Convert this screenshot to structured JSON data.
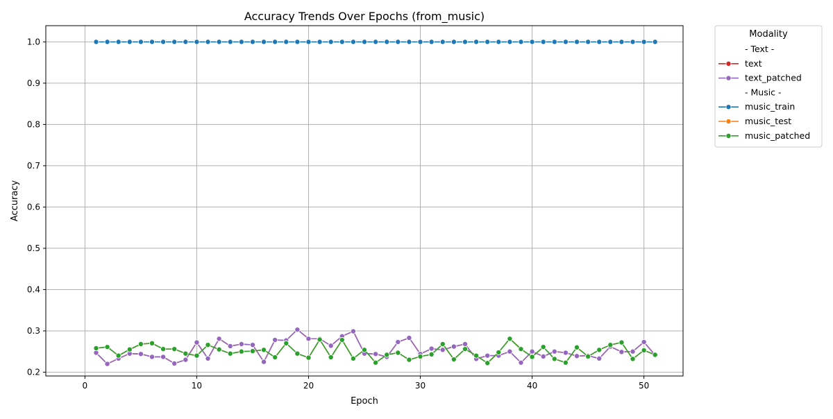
{
  "chart_data": {
    "type": "line",
    "title": "Accuracy Trends Over Epochs (from_music)",
    "xlabel": "Epoch",
    "ylabel": "Accuracy",
    "xlim": [
      -3.5,
      53.5
    ],
    "ylim": [
      0.1907,
      1.0393
    ],
    "xticks": [
      0,
      10,
      20,
      30,
      40,
      50
    ],
    "yticks": [
      0.2,
      0.3,
      0.4,
      0.5,
      0.6,
      0.7,
      0.8,
      0.9,
      1.0
    ],
    "xtick_labels": [
      "0",
      "10",
      "20",
      "30",
      "40",
      "50"
    ],
    "ytick_labels": [
      "0.2",
      "0.3",
      "0.4",
      "0.5",
      "0.6",
      "0.7",
      "0.8",
      "0.9",
      "1.0"
    ],
    "grid": true,
    "legend_title": "Modality",
    "legend_placement": "outside right, top",
    "legend_entries": [
      {
        "label": "- Text -",
        "header": true
      },
      {
        "label": "text",
        "series": 0
      },
      {
        "label": "text_patched",
        "series": 1
      },
      {
        "label": "- Music -",
        "header": true
      },
      {
        "label": "music_train",
        "series": 2
      },
      {
        "label": "music_test",
        "series": 3
      },
      {
        "label": "music_patched",
        "series": 4
      }
    ],
    "x": [
      1,
      2,
      3,
      4,
      5,
      6,
      7,
      8,
      9,
      10,
      11,
      12,
      13,
      14,
      15,
      16,
      17,
      18,
      19,
      20,
      21,
      22,
      23,
      24,
      25,
      26,
      27,
      28,
      29,
      30,
      31,
      32,
      33,
      34,
      35,
      36,
      37,
      38,
      39,
      40,
      41,
      42,
      43,
      44,
      45,
      46,
      47,
      48,
      49,
      50,
      51
    ],
    "series": [
      {
        "name": "text",
        "color": "#d62728",
        "values": [
          0.247,
          0.22,
          0.233,
          0.245,
          0.244,
          0.237,
          0.237,
          0.221,
          0.23,
          0.272,
          0.233,
          0.281,
          0.263,
          0.268,
          0.266,
          0.225,
          0.278,
          0.277,
          0.303,
          0.281,
          0.281,
          0.264,
          0.287,
          0.299,
          0.245,
          0.244,
          0.237,
          0.273,
          0.283,
          0.244,
          0.257,
          0.254,
          0.262,
          0.268,
          0.232,
          0.24,
          0.24,
          0.25,
          0.223,
          0.25,
          0.238,
          0.25,
          0.247,
          0.239,
          0.24,
          0.233,
          0.262,
          0.249,
          0.25,
          0.273,
          0.241
        ]
      },
      {
        "name": "text_patched",
        "color": "#9467bd",
        "values": [
          0.247,
          0.22,
          0.233,
          0.245,
          0.244,
          0.237,
          0.237,
          0.221,
          0.23,
          0.272,
          0.233,
          0.281,
          0.263,
          0.268,
          0.266,
          0.225,
          0.278,
          0.277,
          0.303,
          0.281,
          0.281,
          0.264,
          0.287,
          0.299,
          0.245,
          0.244,
          0.237,
          0.273,
          0.283,
          0.244,
          0.257,
          0.254,
          0.262,
          0.268,
          0.232,
          0.24,
          0.24,
          0.25,
          0.223,
          0.25,
          0.238,
          0.25,
          0.247,
          0.239,
          0.24,
          0.233,
          0.262,
          0.249,
          0.25,
          0.273,
          0.241
        ]
      },
      {
        "name": "music_train",
        "color": "#1f77b4",
        "values": [
          1.0,
          1.0,
          1.0,
          1.0,
          1.0,
          1.0,
          1.0,
          1.0,
          1.0,
          1.0,
          1.0,
          1.0,
          1.0,
          1.0,
          1.0,
          1.0,
          1.0,
          1.0,
          1.0,
          1.0,
          1.0,
          1.0,
          1.0,
          1.0,
          1.0,
          1.0,
          1.0,
          1.0,
          1.0,
          1.0,
          1.0,
          1.0,
          1.0,
          1.0,
          1.0,
          1.0,
          1.0,
          1.0,
          1.0,
          1.0,
          1.0,
          1.0,
          1.0,
          1.0,
          1.0,
          1.0,
          1.0,
          1.0,
          1.0,
          1.0,
          1.0
        ]
      },
      {
        "name": "music_test",
        "color": "#ff7f0e",
        "values": [
          0.258,
          0.261,
          0.24,
          0.255,
          0.268,
          0.27,
          0.256,
          0.256,
          0.245,
          0.24,
          0.266,
          0.255,
          0.245,
          0.25,
          0.251,
          0.254,
          0.236,
          0.27,
          0.245,
          0.235,
          0.279,
          0.236,
          0.278,
          0.233,
          0.254,
          0.223,
          0.242,
          0.247,
          0.23,
          0.238,
          0.243,
          0.268,
          0.231,
          0.256,
          0.24,
          0.222,
          0.248,
          0.281,
          0.256,
          0.237,
          0.261,
          0.232,
          0.223,
          0.26,
          0.238,
          0.254,
          0.266,
          0.272,
          0.232,
          0.253,
          0.242
        ]
      },
      {
        "name": "music_patched",
        "color": "#2ca02c",
        "values": [
          0.258,
          0.261,
          0.24,
          0.255,
          0.268,
          0.27,
          0.256,
          0.256,
          0.245,
          0.24,
          0.266,
          0.255,
          0.245,
          0.25,
          0.251,
          0.254,
          0.236,
          0.27,
          0.245,
          0.235,
          0.279,
          0.236,
          0.278,
          0.233,
          0.254,
          0.223,
          0.242,
          0.247,
          0.23,
          0.238,
          0.243,
          0.268,
          0.231,
          0.256,
          0.24,
          0.222,
          0.248,
          0.281,
          0.256,
          0.237,
          0.261,
          0.232,
          0.223,
          0.26,
          0.238,
          0.254,
          0.266,
          0.272,
          0.232,
          0.253,
          0.242
        ]
      }
    ]
  }
}
